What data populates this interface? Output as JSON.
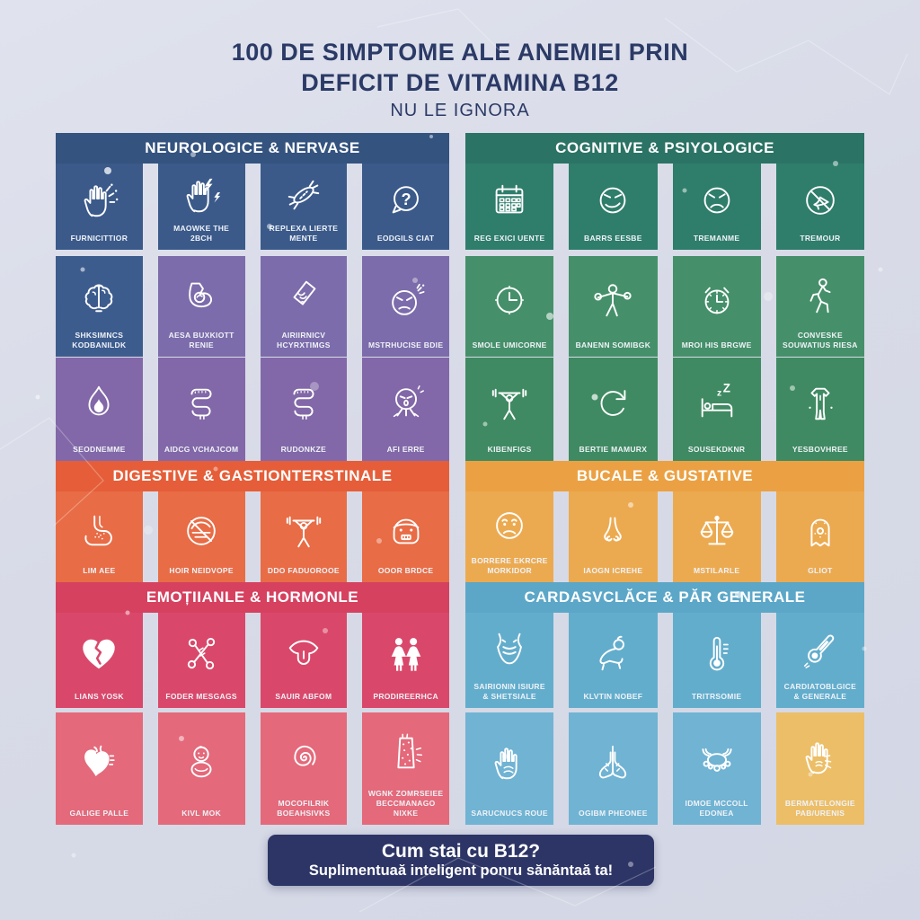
{
  "title": {
    "line1": "100 DE SIMPTOME ALE ANEMIEI PRIN",
    "line2": "DEFICIT DE VITAMINA B12",
    "line3": "NU LE IGNORA"
  },
  "footer": {
    "line1": "Cum stai cu B12?",
    "line2": "Suplimentuaă inteligent ponru sănăntaă ta!"
  },
  "colors": {
    "background": "#D8DBE7",
    "title_text": "#2B3A66",
    "footer_bg": "#2D3566",
    "footer_text": "#FFFFFF",
    "label_text": "#F0F3F8"
  },
  "bands": [
    {
      "panels": [
        {
          "header": "NEUROLOGICE & NERVASE",
          "header_color": "#34537F",
          "tile_color": "#3B5A8A",
          "tiles": [
            {
              "icon": "hand-tingling-icon",
              "label": "FURNICITTIOR"
            },
            {
              "icon": "hand-lightning-icon",
              "label": "MAOWKE THE 2BCH"
            },
            {
              "icon": "nerve-icon",
              "label": "REPLEXA LIERTE MENTE"
            },
            {
              "icon": "question-bubble-icon",
              "label": "EODGILS CIAT"
            }
          ]
        },
        {
          "header": "COGNITIVE & PSIYOLOGICE",
          "header_color": "#2B7365",
          "tile_color": "#2F7D6B",
          "tiles": [
            {
              "icon": "calendar-icon",
              "label": "REG EXICI UENTE"
            },
            {
              "icon": "smirk-face-icon",
              "label": "BARRS EESBE"
            },
            {
              "icon": "angry-face-icon",
              "label": "TREMANME"
            },
            {
              "icon": "no-bell-icon",
              "label": "TREMOUR"
            }
          ]
        }
      ]
    },
    {
      "panels": [
        {
          "header": null,
          "tile_color": "#7C6CAB",
          "tiles": [
            {
              "icon": "brain-icon",
              "label": "SHKSIMNCS KODBANILDK",
              "color": "#3D5C8E"
            },
            {
              "icon": "arm-muscle-icon",
              "label": "AESA BUXKIOTT RENIE"
            },
            {
              "icon": "joint-pain-icon",
              "label": "AIRIIRNICV HCYRXTIMGS"
            },
            {
              "icon": "pain-face-icon",
              "label": "MSTRHUCISE BDIE"
            }
          ]
        },
        {
          "header": null,
          "tile_color": "#45906A",
          "tiles": [
            {
              "icon": "clock-icon",
              "label": "SMOLE UMICORNE"
            },
            {
              "icon": "exercise-person-icon",
              "label": "BANENN SOMIBGK"
            },
            {
              "icon": "alarm-clock-icon",
              "label": "MROI HIS BRGWE"
            },
            {
              "icon": "walking-person-icon",
              "label": "CONVESKE SOUWATIUS RIESA"
            }
          ]
        }
      ]
    },
    {
      "panels": [
        {
          "header": null,
          "tile_color": "#8268A8",
          "tiles": [
            {
              "icon": "flame-icon",
              "label": "SEODNEMME"
            },
            {
              "icon": "intestines-icon",
              "label": "AIDCG VCHAJCOM"
            },
            {
              "icon": "intestines-icon",
              "label": "RUDONKZE"
            },
            {
              "icon": "vomit-face-icon",
              "label": "AFI ERRE"
            }
          ]
        },
        {
          "header": null,
          "tile_color": "#3F8A62",
          "tiles": [
            {
              "icon": "weightlifter-icon",
              "label": "KIBENFIGS"
            },
            {
              "icon": "refresh-arrows-icon",
              "label": "BERTIE MAMURX"
            },
            {
              "icon": "sleeping-bed-icon",
              "label": "SOUSEKDKNR"
            },
            {
              "icon": "body-suit-icon",
              "label": "YESBOVHREE"
            }
          ]
        }
      ]
    },
    {
      "panels": [
        {
          "header": "DIGESTIVE & GASTIONTERSTINALE",
          "header_color": "#E55E39",
          "tile_color": "#E86C46",
          "tiles": [
            {
              "icon": "stomach-icon",
              "label": "LIM AEE"
            },
            {
              "icon": "no-food-icon",
              "label": "HOIR NEIDVOPE"
            },
            {
              "icon": "weightlifter-icon",
              "label": "DDO FADUOROOE"
            },
            {
              "icon": "worried-face-icon",
              "label": "OOOR BRDCE"
            }
          ]
        },
        {
          "header": "BUCALE & GUSTATIVE",
          "header_color": "#EBA143",
          "tile_color": "#ECAA50",
          "tiles": [
            {
              "icon": "sad-face-icon",
              "label": "BORRERE EKRCRE MORKIDOR"
            },
            {
              "icon": "nose-icon",
              "label": "IAOGN ICREHE"
            },
            {
              "icon": "scales-icon",
              "label": "MSTILARLE"
            },
            {
              "icon": "ghost-icon",
              "label": "GLIOT"
            }
          ]
        }
      ]
    },
    {
      "panels": [
        {
          "header": "EMOȚIIANLE & HORMONLE",
          "header_color": "#D64160",
          "tile_color": "#D9486A",
          "tiles": [
            {
              "icon": "broken-heart-icon",
              "label": "LIANS YOSK"
            },
            {
              "icon": "chromosome-icon",
              "label": "FODER MESGAGS"
            },
            {
              "icon": "tongue-icon",
              "label": "SAUIR ABFOM"
            },
            {
              "icon": "two-women-icon",
              "label": "PRODIREERHCA"
            }
          ]
        },
        {
          "header": "CARDASVCLĂCE & PĂR GENERALE",
          "header_color": "#5CA7C8",
          "tile_color": "#63ADCC",
          "tiles": [
            {
              "icon": "throat-icon",
              "label": "SAIRIONIN ISIURE & SHETSIALE"
            },
            {
              "icon": "crawling-baby-icon",
              "label": "KLVTIN NOBEF"
            },
            {
              "icon": "thermometer-icon",
              "label": "TRITRSOMIE"
            },
            {
              "icon": "thermometer-diagonal-icon",
              "label": "CARDIATOBLGICE & GENERALE"
            }
          ]
        }
      ]
    },
    {
      "panels": [
        {
          "header": null,
          "tile_color": "#E4697A",
          "tiles": [
            {
              "icon": "anatomical-heart-icon",
              "label": "GALIGE PALLE"
            },
            {
              "icon": "sitting-baby-icon",
              "label": "KIVL MOK"
            },
            {
              "icon": "spiral-icon",
              "label": "MOCOFILRIK BOEAHSIVKS"
            },
            {
              "icon": "skin-rash-icon",
              "label": "WGNK ZOMRSEIEE BECCMANAGO NIXKE"
            }
          ]
        },
        {
          "header": null,
          "tile_color": "#70B3D3",
          "tiles": [
            {
              "icon": "hand-palm-icon",
              "label": "SARUCNUCS ROUE"
            },
            {
              "icon": "lungs-icon",
              "label": "OGIBM PHEONEE"
            },
            {
              "icon": "crab-icon",
              "label": "IDMOE MCCOLL EDONEA"
            },
            {
              "icon": "hand-allergy-icon",
              "label": "BERMATELONGIE PAB/URENIS",
              "color": "#ECBE67"
            }
          ]
        }
      ]
    }
  ]
}
